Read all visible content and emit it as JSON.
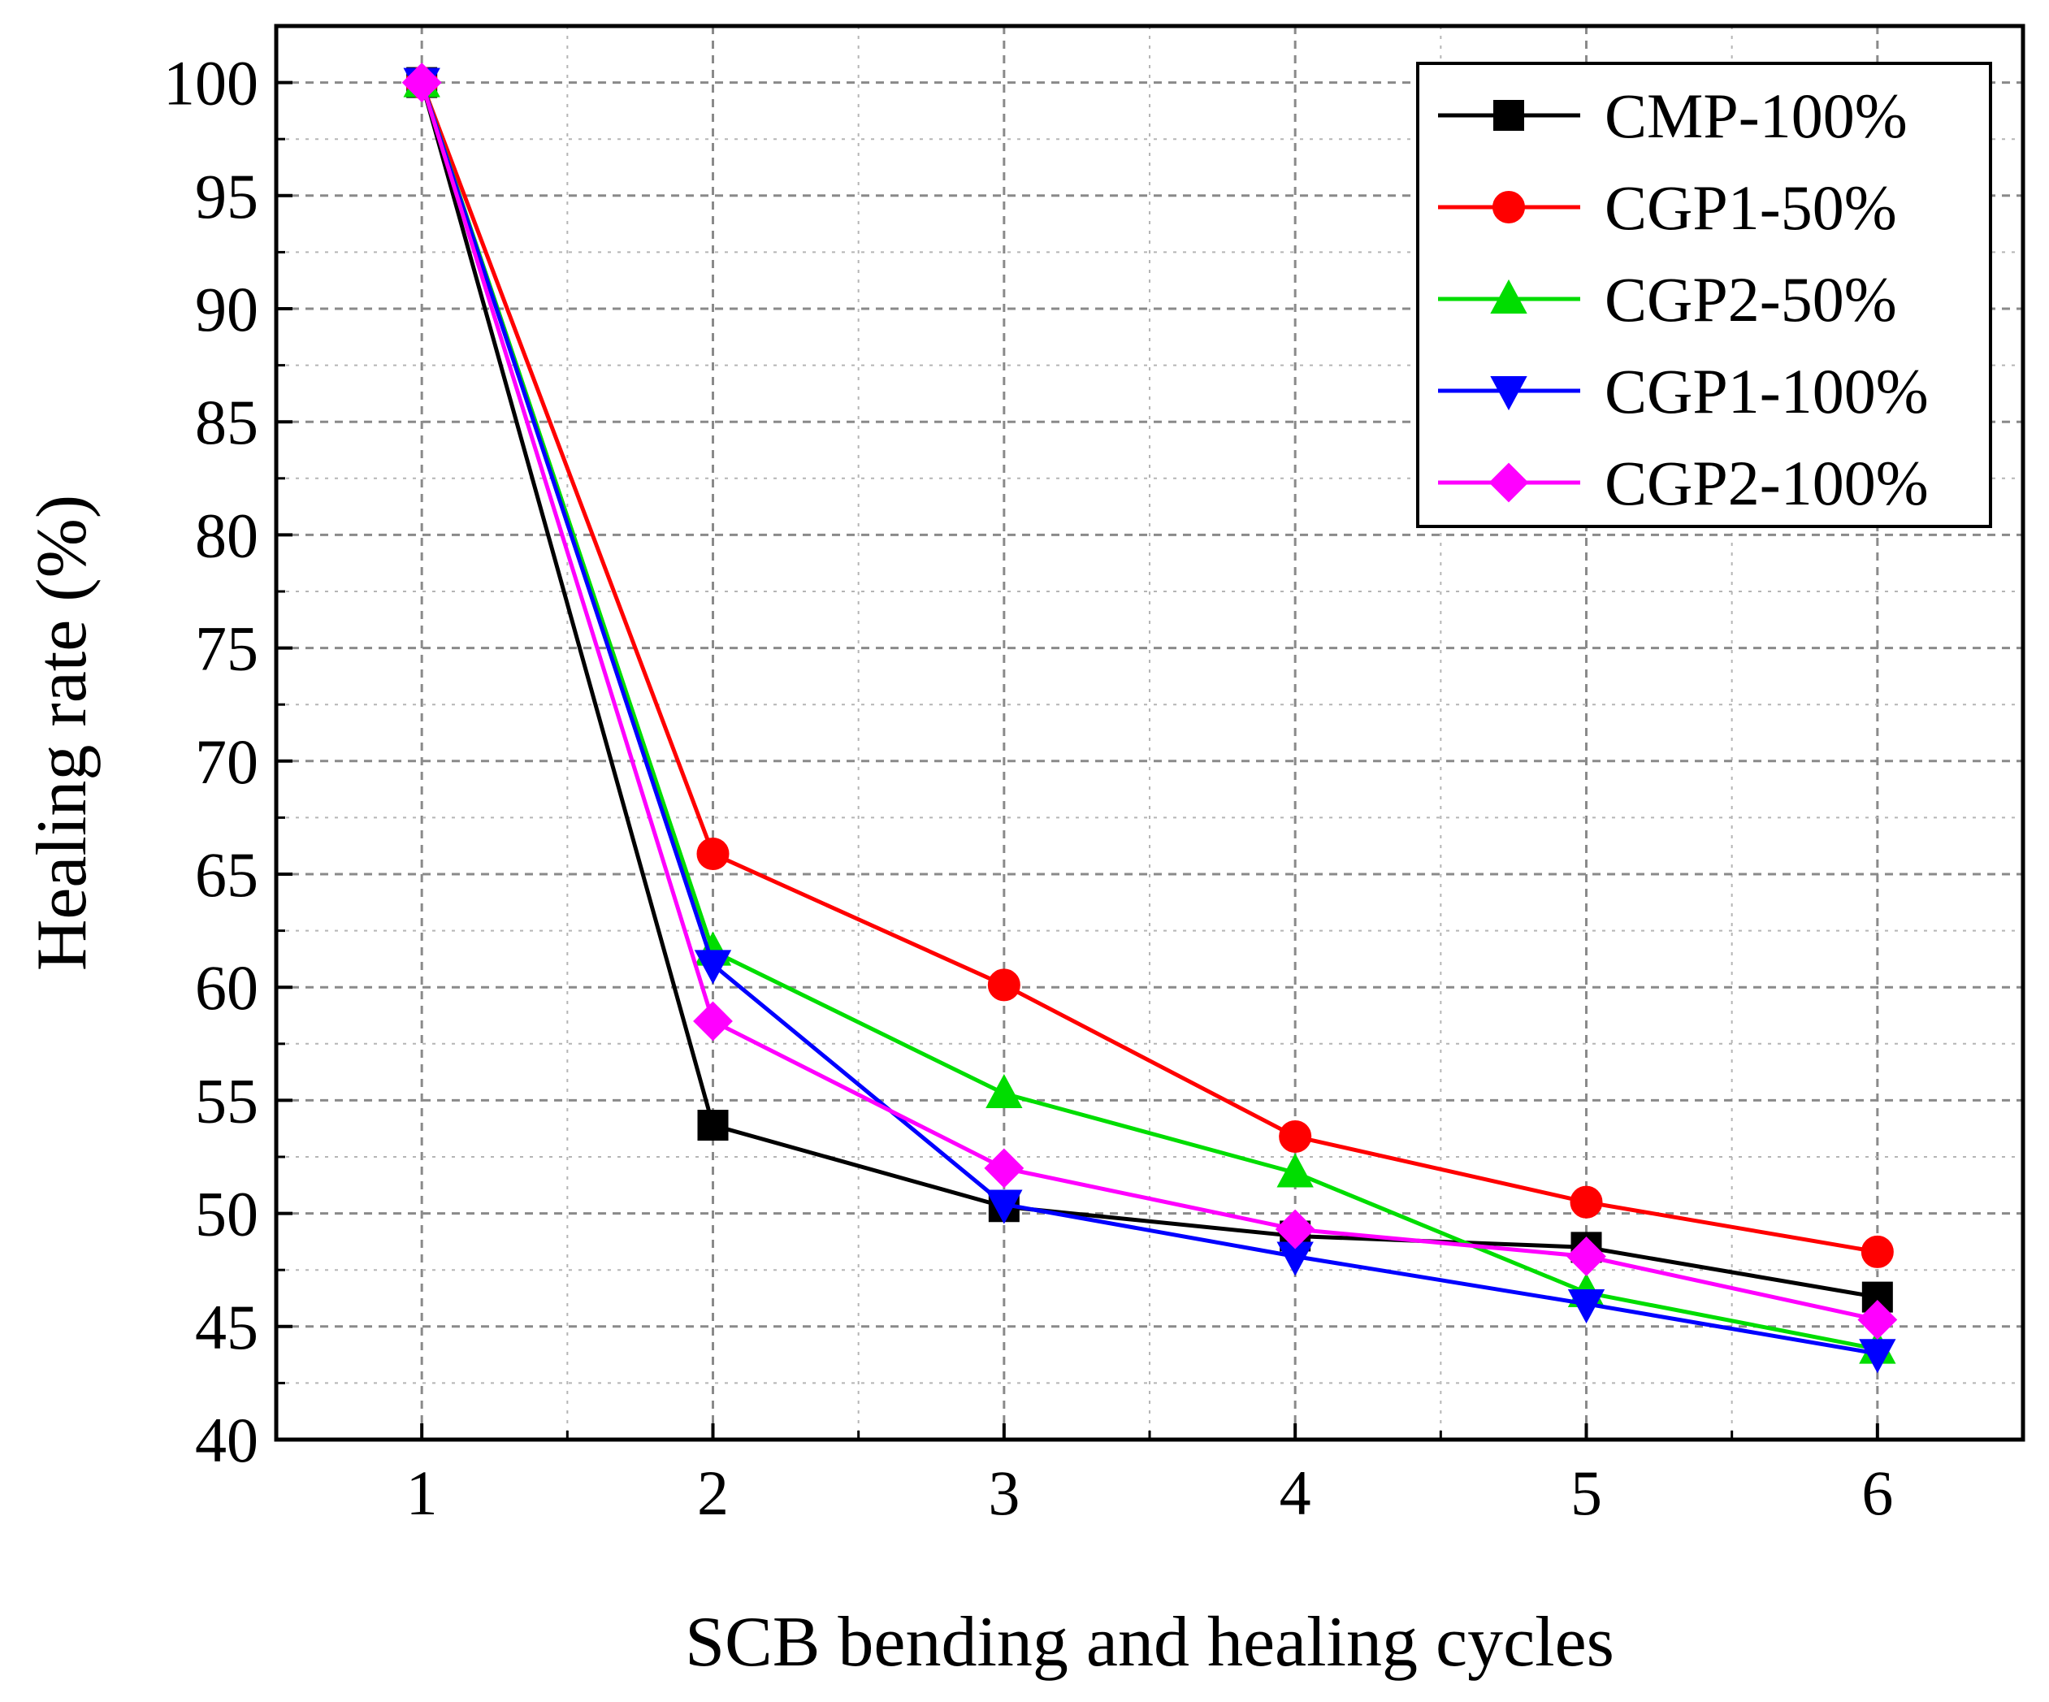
{
  "chart_data": {
    "type": "line",
    "title": "",
    "xlabel": "SCB bending and healing cycles",
    "ylabel": "Healing rate (%)",
    "x": [
      1,
      2,
      3,
      4,
      5,
      6
    ],
    "xticks": [
      "1",
      "2",
      "3",
      "4",
      "5",
      "6"
    ],
    "xlim": [
      0.5,
      6.5
    ],
    "ylim": [
      40,
      102.5
    ],
    "yticks": [
      40,
      45,
      50,
      55,
      60,
      65,
      70,
      75,
      80,
      85,
      90,
      95,
      100
    ],
    "grid": true,
    "legend_position": "top-right",
    "series": [
      {
        "name": "CMP-100%",
        "color": "#000000",
        "marker": "square",
        "values": [
          100,
          53.9,
          50.3,
          49.0,
          48.5,
          46.3
        ]
      },
      {
        "name": "CGP1-50%",
        "color": "#ff0000",
        "marker": "circle",
        "values": [
          100,
          65.9,
          60.1,
          53.4,
          50.5,
          48.3
        ]
      },
      {
        "name": "CGP2-50%",
        "color": "#00dd00",
        "marker": "triangle-up",
        "values": [
          100,
          61.6,
          55.3,
          51.8,
          46.5,
          44.0
        ]
      },
      {
        "name": "CGP1-100%",
        "color": "#0000ff",
        "marker": "triangle-down",
        "values": [
          100,
          61.0,
          50.4,
          48.1,
          46.0,
          43.8
        ]
      },
      {
        "name": "CGP2-100%",
        "color": "#ff00ff",
        "marker": "diamond",
        "values": [
          100,
          58.5,
          52.0,
          49.3,
          48.1,
          45.3
        ]
      }
    ]
  }
}
